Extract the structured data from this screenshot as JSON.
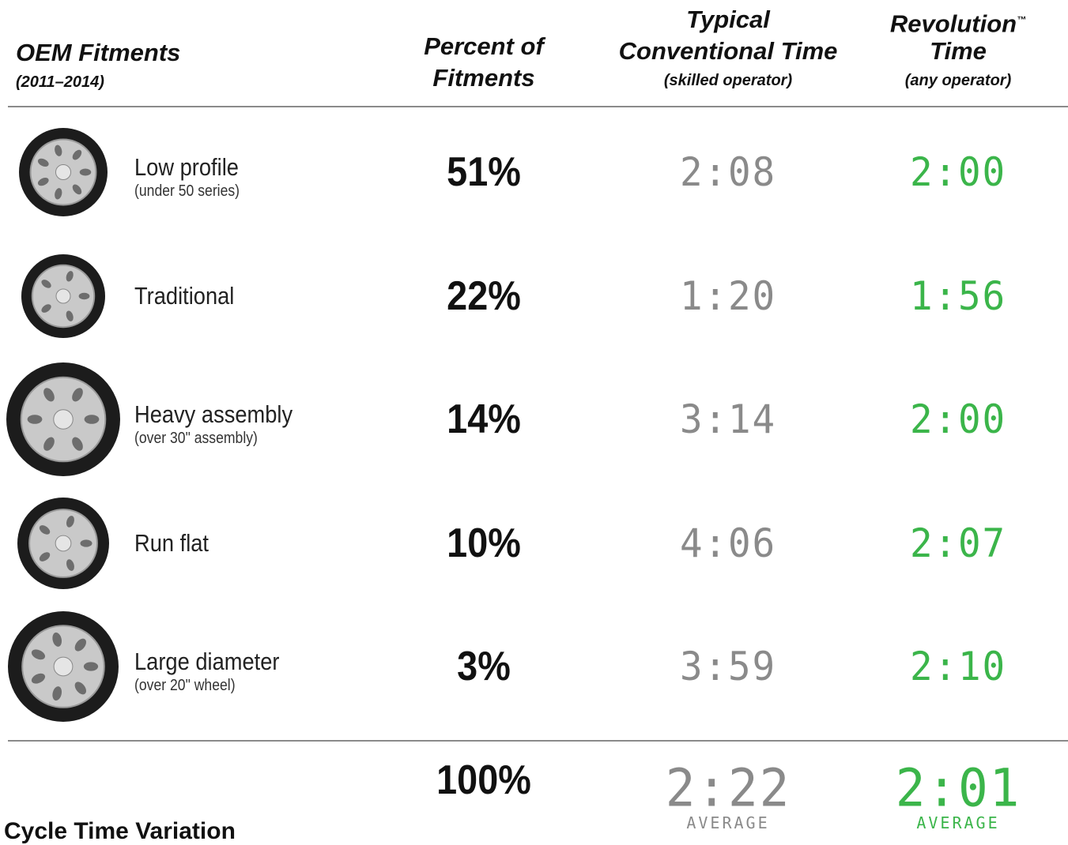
{
  "header": {
    "fitments_title": "OEM Fitments",
    "fitments_years": "(2011–2014)",
    "percent_line1": "Percent of",
    "percent_line2": "Fitments",
    "conventional_line1": "Typical",
    "conventional_line2": "Conventional Time",
    "conventional_note": "(skilled operator)",
    "revolution_line1": "Revolution",
    "revolution_mark": "™",
    "revolution_line2": "Time",
    "revolution_note": "(any operator)"
  },
  "rows": [
    {
      "name": "Low profile",
      "detail": "(under 50 series)",
      "percent": "51%",
      "conventional": "2:08",
      "revolution": "2:00"
    },
    {
      "name": "Traditional",
      "percent": "22%",
      "conventional": "1:20",
      "revolution": "1:56"
    },
    {
      "name": "Heavy assembly",
      "detail": "(over 30\" assembly)",
      "percent": "14%",
      "conventional": "3:14",
      "revolution": "2:00"
    },
    {
      "name": "Run flat",
      "percent": "10%",
      "conventional": "4:06",
      "revolution": "2:07"
    },
    {
      "name": "Large diameter",
      "detail": "(over 20\" wheel)",
      "percent": "3%",
      "conventional": "3:59",
      "revolution": "2:10"
    }
  ],
  "totals": {
    "percent": "100%",
    "conventional": "2:22",
    "conventional_label": "AVERAGE",
    "revolution": "2:01",
    "revolution_label": "AVERAGE"
  },
  "footer": {
    "section_title": "Cycle Time Variation"
  }
}
